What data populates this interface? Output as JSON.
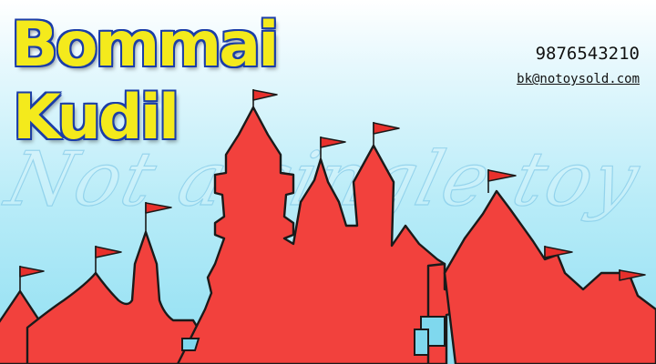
{
  "brand": {
    "line1": "Bommai",
    "line2": "Kudil"
  },
  "contact": {
    "phone": "9876543210",
    "email": "bk@notoysold.com"
  },
  "watermark": {
    "text": "Not a single toy ever sold."
  },
  "colors": {
    "castle_fill": "#f2413d",
    "flag": "#e8302c",
    "title_fill": "#f4ea1c",
    "title_outline": "#1b3da8",
    "sky": "#b9ecf8"
  },
  "illustration": {
    "icon": "castle-silhouette"
  }
}
